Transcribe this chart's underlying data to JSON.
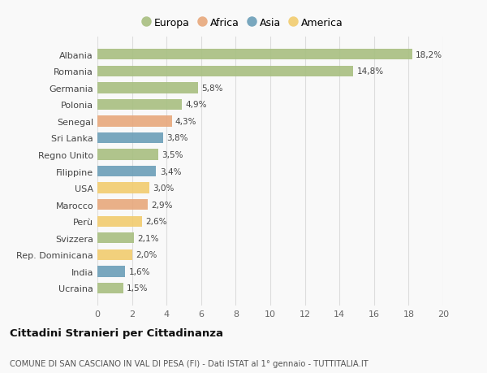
{
  "countries": [
    "Albania",
    "Romania",
    "Germania",
    "Polonia",
    "Senegal",
    "Sri Lanka",
    "Regno Unito",
    "Filippine",
    "USA",
    "Marocco",
    "Perù",
    "Svizzera",
    "Rep. Dominicana",
    "India",
    "Ucraina"
  ],
  "values": [
    18.2,
    14.8,
    5.8,
    4.9,
    4.3,
    3.8,
    3.5,
    3.4,
    3.0,
    2.9,
    2.6,
    2.1,
    2.0,
    1.6,
    1.5
  ],
  "labels": [
    "18,2%",
    "14,8%",
    "5,8%",
    "4,9%",
    "4,3%",
    "3,8%",
    "3,5%",
    "3,4%",
    "3,0%",
    "2,9%",
    "2,6%",
    "2,1%",
    "2,0%",
    "1,6%",
    "1,5%"
  ],
  "continents": [
    "Europa",
    "Europa",
    "Europa",
    "Europa",
    "Africa",
    "Asia",
    "Europa",
    "Asia",
    "America",
    "Africa",
    "America",
    "Europa",
    "America",
    "Asia",
    "Europa"
  ],
  "continent_colors": {
    "Europa": "#a8bf80",
    "Africa": "#e8a87c",
    "Asia": "#6b9eb8",
    "America": "#f2cc6e"
  },
  "legend_order": [
    "Europa",
    "Africa",
    "Asia",
    "America"
  ],
  "xlim": [
    0,
    20
  ],
  "xticks": [
    0,
    2,
    4,
    6,
    8,
    10,
    12,
    14,
    16,
    18,
    20
  ],
  "title1": "Cittadini Stranieri per Cittadinanza",
  "title2": "COMUNE DI SAN CASCIANO IN VAL DI PESA (FI) - Dati ISTAT al 1° gennaio - TUTTITALIA.IT",
  "bg_color": "#f9f9f9",
  "bar_height": 0.65,
  "grid_color": "#dddddd"
}
